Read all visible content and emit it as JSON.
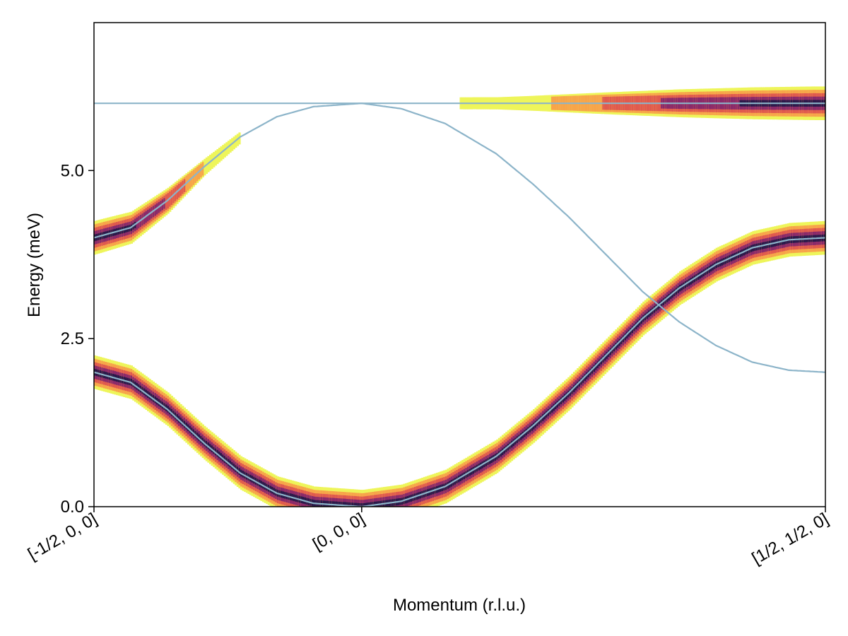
{
  "chart_data": {
    "type": "heatmap",
    "title": "",
    "xlabel": "Momentum (r.l.u.)",
    "ylabel": "Energy (meV)",
    "x_ticks": [
      {
        "value": 0,
        "label": "[-1/2, 0, 0]"
      },
      {
        "value": 0.366,
        "label": "[0, 0, 0]"
      },
      {
        "value": 1,
        "label": "[1/2, 1/2, 0]"
      }
    ],
    "y_ticks": [
      {
        "value": 0,
        "label": "0.0"
      },
      {
        "value": 2.5,
        "label": "2.5"
      },
      {
        "value": 5,
        "label": "5.0"
      }
    ],
    "xlim": [
      0,
      1
    ],
    "ylim": [
      0,
      7.2
    ],
    "grid": false,
    "line_color": "#8cb4c9",
    "colormap": [
      "#eef55a",
      "#f7a44a",
      "#e05a4e",
      "#8a2a6a",
      "#2a1a4a"
    ],
    "series": [
      {
        "x": [
          0,
          0.05,
          0.1,
          0.15,
          0.2,
          0.25,
          0.3,
          0.366,
          0.42,
          0.48,
          0.55,
          0.6,
          0.65,
          0.7,
          0.75,
          0.8,
          0.85,
          0.9,
          0.95,
          1
        ],
        "y": [
          2.0,
          1.85,
          1.45,
          0.95,
          0.5,
          0.2,
          0.05,
          0.0,
          0.08,
          0.3,
          0.75,
          1.2,
          1.7,
          2.25,
          2.8,
          3.25,
          3.6,
          3.85,
          3.97,
          4.0
        ],
        "intensity": [
          1,
          1,
          1,
          1,
          1,
          1,
          1,
          1,
          1,
          1,
          1,
          1,
          1,
          1,
          1,
          1,
          1,
          1,
          1,
          1
        ]
      },
      {
        "x": [
          0,
          0.05,
          0.1,
          0.15,
          0.2,
          0.25,
          0.3,
          0.366,
          0.42,
          0.48,
          0.55,
          0.6,
          0.65,
          0.7,
          0.75,
          0.8,
          0.85,
          0.9,
          0.95,
          1
        ],
        "y": [
          4.0,
          4.15,
          4.55,
          5.05,
          5.5,
          5.8,
          5.95,
          6.0,
          5.92,
          5.7,
          5.25,
          4.8,
          4.3,
          3.75,
          3.2,
          2.75,
          2.4,
          2.15,
          2.03,
          2.0
        ],
        "intensity": [
          0.55,
          0.5,
          0.35,
          0.12,
          0,
          0,
          0,
          0,
          0,
          0,
          0,
          0,
          0,
          0,
          0,
          0,
          0,
          0,
          0,
          0
        ]
      },
      {
        "x": [
          0,
          0.1,
          0.2,
          0.3,
          0.366,
          0.45,
          0.55,
          0.6,
          0.7,
          0.8,
          0.9,
          1
        ],
        "y": [
          6.0,
          6.0,
          6.0,
          6.0,
          6.0,
          6.0,
          6.0,
          6.0,
          6.0,
          6.0,
          6.0,
          6.0
        ],
        "intensity": [
          0,
          0,
          0,
          0,
          0,
          0,
          0.01,
          0.08,
          0.25,
          0.4,
          0.5,
          0.55
        ]
      }
    ]
  }
}
